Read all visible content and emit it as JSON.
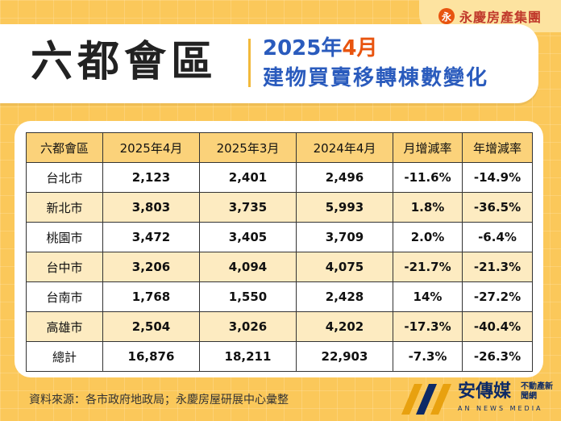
{
  "brand": {
    "logo_glyph": "永",
    "name": "永慶房產集團"
  },
  "header": {
    "title": "六都會區",
    "subtitle_year": "2025年",
    "subtitle_month": "4月",
    "subtitle_line2": "建物買賣移轉棟數變化"
  },
  "table": {
    "columns": [
      "六都會區",
      "2025年4月",
      "2025年3月",
      "2024年4月",
      "月增減率",
      "年增減率"
    ],
    "rows": [
      [
        "台北市",
        "2,123",
        "2,401",
        "2,496",
        "-11.6%",
        "-14.9%"
      ],
      [
        "新北市",
        "3,803",
        "3,735",
        "5,993",
        "1.8%",
        "-36.5%"
      ],
      [
        "桃園市",
        "3,472",
        "3,405",
        "3,709",
        "2.0%",
        "-6.4%"
      ],
      [
        "台中市",
        "3,206",
        "4,094",
        "4,075",
        "-21.7%",
        "-21.3%"
      ],
      [
        "台南市",
        "1,768",
        "1,550",
        "2,428",
        "14%",
        "-27.2%"
      ],
      [
        "高雄市",
        "2,504",
        "3,026",
        "4,202",
        "-17.3%",
        "-40.4%"
      ],
      [
        "總計",
        "16,876",
        "18,211",
        "22,903",
        "-7.3%",
        "-26.3%"
      ]
    ]
  },
  "footer": {
    "source": "資料來源：各市政府地政局；永慶房屋研展中心彙整",
    "media_name": "安傳媒",
    "media_tag": "不動產新聞網",
    "media_sub": "AN NEWS MEDIA"
  },
  "colors": {
    "background": "#fbc85a",
    "header_row": "#fbd27a",
    "stripe_row": "#fdebc1",
    "title_blue": "#2a5bbd",
    "accent_orange": "#e8540f",
    "brand_red": "#c0392b"
  }
}
